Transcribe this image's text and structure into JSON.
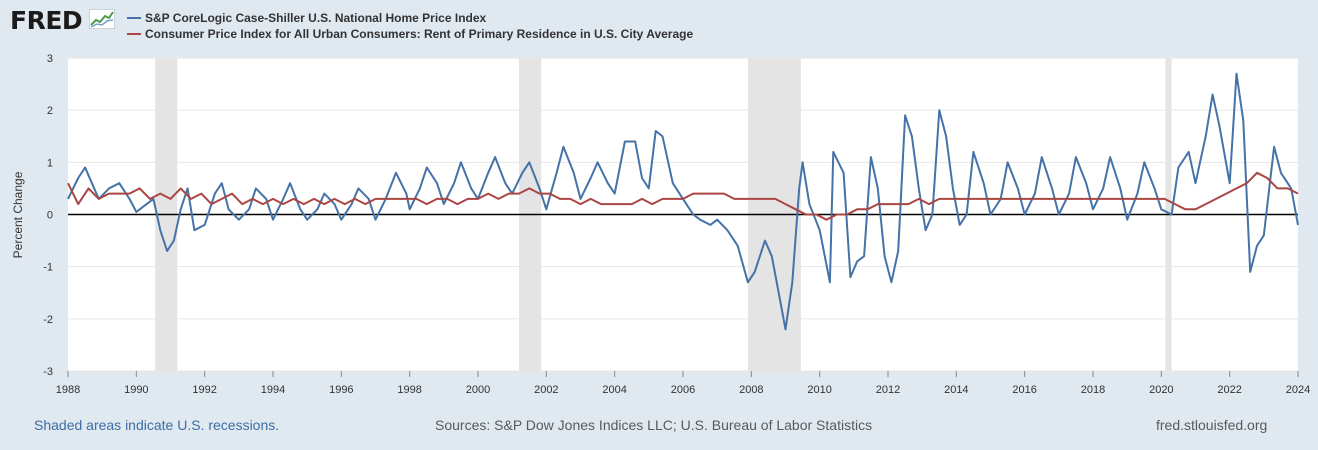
{
  "header": {
    "logo_text": "FRED"
  },
  "legend": [
    {
      "label": "S&P CoreLogic Case-Shiller U.S. National Home Price Index",
      "color": "#4572a7"
    },
    {
      "label": "Consumer Price Index for All Urban Consumers: Rent of Primary Residence in U.S. City Average",
      "color": "#aa4643"
    }
  ],
  "footer": {
    "recession_note": "Shaded areas indicate U.S. recessions.",
    "sources": "Sources: S&P Dow Jones Indices LLC; U.S. Bureau of Labor Statistics",
    "site": "fred.stlouisfed.org"
  },
  "chart_data": {
    "type": "line",
    "ylabel": "Percent Change",
    "xlim": [
      1988,
      2024
    ],
    "ylim": [
      -3,
      3
    ],
    "yticks": [
      -3,
      -2,
      -1,
      0,
      1,
      2,
      3
    ],
    "xticks": [
      1988,
      1990,
      1992,
      1994,
      1996,
      1998,
      2000,
      2002,
      2004,
      2006,
      2008,
      2010,
      2012,
      2014,
      2016,
      2018,
      2020,
      2022,
      2024
    ],
    "grid": true,
    "legend_position": "top-left",
    "recessions": [
      [
        1990.55,
        1991.2
      ],
      [
        2001.2,
        2001.85
      ],
      [
        2007.9,
        2009.45
      ],
      [
        2020.12,
        2020.3
      ]
    ],
    "series": [
      {
        "name": "S&P CoreLogic Case-Shiller U.S. National Home Price Index",
        "color": "#4572a7",
        "points": [
          [
            1988.0,
            0.3
          ],
          [
            1988.3,
            0.7
          ],
          [
            1988.5,
            0.9
          ],
          [
            1988.7,
            0.6
          ],
          [
            1988.9,
            0.3
          ],
          [
            1989.2,
            0.5
          ],
          [
            1989.5,
            0.6
          ],
          [
            1989.8,
            0.3
          ],
          [
            1990.0,
            0.05
          ],
          [
            1990.3,
            0.2
          ],
          [
            1990.5,
            0.3
          ],
          [
            1990.7,
            -0.3
          ],
          [
            1990.9,
            -0.7
          ],
          [
            1991.1,
            -0.5
          ],
          [
            1991.3,
            0.1
          ],
          [
            1991.5,
            0.5
          ],
          [
            1991.7,
            -0.3
          ],
          [
            1992.0,
            -0.2
          ],
          [
            1992.3,
            0.4
          ],
          [
            1992.5,
            0.6
          ],
          [
            1992.7,
            0.1
          ],
          [
            1993.0,
            -0.1
          ],
          [
            1993.3,
            0.1
          ],
          [
            1993.5,
            0.5
          ],
          [
            1993.8,
            0.3
          ],
          [
            1994.0,
            -0.1
          ],
          [
            1994.3,
            0.3
          ],
          [
            1994.5,
            0.6
          ],
          [
            1994.8,
            0.1
          ],
          [
            1995.0,
            -0.1
          ],
          [
            1995.3,
            0.1
          ],
          [
            1995.5,
            0.4
          ],
          [
            1995.8,
            0.2
          ],
          [
            1996.0,
            -0.1
          ],
          [
            1996.3,
            0.2
          ],
          [
            1996.5,
            0.5
          ],
          [
            1996.8,
            0.3
          ],
          [
            1997.0,
            -0.1
          ],
          [
            1997.3,
            0.3
          ],
          [
            1997.6,
            0.8
          ],
          [
            1997.9,
            0.4
          ],
          [
            1998.0,
            0.1
          ],
          [
            1998.3,
            0.5
          ],
          [
            1998.5,
            0.9
          ],
          [
            1998.8,
            0.6
          ],
          [
            1999.0,
            0.2
          ],
          [
            1999.3,
            0.6
          ],
          [
            1999.5,
            1.0
          ],
          [
            1999.8,
            0.5
          ],
          [
            2000.0,
            0.3
          ],
          [
            2000.3,
            0.8
          ],
          [
            2000.5,
            1.1
          ],
          [
            2000.8,
            0.6
          ],
          [
            2001.0,
            0.4
          ],
          [
            2001.3,
            0.8
          ],
          [
            2001.5,
            1.0
          ],
          [
            2001.8,
            0.5
          ],
          [
            2002.0,
            0.1
          ],
          [
            2002.3,
            0.8
          ],
          [
            2002.5,
            1.3
          ],
          [
            2002.8,
            0.8
          ],
          [
            2003.0,
            0.3
          ],
          [
            2003.3,
            0.7
          ],
          [
            2003.5,
            1.0
          ],
          [
            2003.8,
            0.6
          ],
          [
            2004.0,
            0.4
          ],
          [
            2004.3,
            1.4
          ],
          [
            2004.6,
            1.4
          ],
          [
            2004.8,
            0.7
          ],
          [
            2005.0,
            0.5
          ],
          [
            2005.2,
            1.6
          ],
          [
            2005.4,
            1.5
          ],
          [
            2005.7,
            0.6
          ],
          [
            2006.0,
            0.3
          ],
          [
            2006.3,
            0.0
          ],
          [
            2006.5,
            -0.1
          ],
          [
            2006.8,
            -0.2
          ],
          [
            2007.0,
            -0.1
          ],
          [
            2007.3,
            -0.3
          ],
          [
            2007.6,
            -0.6
          ],
          [
            2007.9,
            -1.3
          ],
          [
            2008.1,
            -1.1
          ],
          [
            2008.4,
            -0.5
          ],
          [
            2008.6,
            -0.8
          ],
          [
            2008.8,
            -1.5
          ],
          [
            2009.0,
            -2.2
          ],
          [
            2009.2,
            -1.3
          ],
          [
            2009.4,
            0.5
          ],
          [
            2009.5,
            1.0
          ],
          [
            2009.7,
            0.2
          ],
          [
            2010.0,
            -0.3
          ],
          [
            2010.3,
            -1.3
          ],
          [
            2010.4,
            1.2
          ],
          [
            2010.7,
            0.8
          ],
          [
            2010.9,
            -1.2
          ],
          [
            2011.1,
            -0.9
          ],
          [
            2011.3,
            -0.8
          ],
          [
            2011.5,
            1.1
          ],
          [
            2011.7,
            0.5
          ],
          [
            2011.9,
            -0.8
          ],
          [
            2012.1,
            -1.3
          ],
          [
            2012.3,
            -0.7
          ],
          [
            2012.5,
            1.9
          ],
          [
            2012.7,
            1.5
          ],
          [
            2012.9,
            0.5
          ],
          [
            2013.1,
            -0.3
          ],
          [
            2013.3,
            0.0
          ],
          [
            2013.5,
            2.0
          ],
          [
            2013.7,
            1.5
          ],
          [
            2013.9,
            0.5
          ],
          [
            2014.1,
            -0.2
          ],
          [
            2014.3,
            0.0
          ],
          [
            2014.5,
            1.2
          ],
          [
            2014.8,
            0.6
          ],
          [
            2015.0,
            0.0
          ],
          [
            2015.3,
            0.3
          ],
          [
            2015.5,
            1.0
          ],
          [
            2015.8,
            0.5
          ],
          [
            2016.0,
            0.0
          ],
          [
            2016.3,
            0.4
          ],
          [
            2016.5,
            1.1
          ],
          [
            2016.8,
            0.5
          ],
          [
            2017.0,
            0.0
          ],
          [
            2017.3,
            0.4
          ],
          [
            2017.5,
            1.1
          ],
          [
            2017.8,
            0.6
          ],
          [
            2018.0,
            0.1
          ],
          [
            2018.3,
            0.5
          ],
          [
            2018.5,
            1.1
          ],
          [
            2018.8,
            0.5
          ],
          [
            2019.0,
            -0.1
          ],
          [
            2019.3,
            0.4
          ],
          [
            2019.5,
            1.0
          ],
          [
            2019.8,
            0.5
          ],
          [
            2020.0,
            0.1
          ],
          [
            2020.3,
            0.0
          ],
          [
            2020.5,
            0.9
          ],
          [
            2020.8,
            1.2
          ],
          [
            2021.0,
            0.6
          ],
          [
            2021.3,
            1.5
          ],
          [
            2021.5,
            2.3
          ],
          [
            2021.7,
            1.7
          ],
          [
            2022.0,
            0.6
          ],
          [
            2022.2,
            2.7
          ],
          [
            2022.4,
            1.8
          ],
          [
            2022.6,
            -1.1
          ],
          [
            2022.8,
            -0.6
          ],
          [
            2023.0,
            -0.4
          ],
          [
            2023.3,
            1.3
          ],
          [
            2023.5,
            0.8
          ],
          [
            2023.8,
            0.5
          ],
          [
            2024.0,
            -0.2
          ]
        ]
      },
      {
        "name": "Consumer Price Index for All Urban Consumers: Rent of Primary Residence in U.S. City Average",
        "color": "#aa4643",
        "points": [
          [
            1988.0,
            0.6
          ],
          [
            1988.3,
            0.2
          ],
          [
            1988.6,
            0.5
          ],
          [
            1988.9,
            0.3
          ],
          [
            1989.2,
            0.4
          ],
          [
            1989.5,
            0.4
          ],
          [
            1989.8,
            0.4
          ],
          [
            1990.1,
            0.5
          ],
          [
            1990.4,
            0.3
          ],
          [
            1990.7,
            0.4
          ],
          [
            1991.0,
            0.3
          ],
          [
            1991.3,
            0.5
          ],
          [
            1991.6,
            0.3
          ],
          [
            1991.9,
            0.4
          ],
          [
            1992.2,
            0.2
          ],
          [
            1992.5,
            0.3
          ],
          [
            1992.8,
            0.4
          ],
          [
            1993.1,
            0.2
          ],
          [
            1993.4,
            0.3
          ],
          [
            1993.7,
            0.2
          ],
          [
            1994.0,
            0.3
          ],
          [
            1994.3,
            0.2
          ],
          [
            1994.6,
            0.3
          ],
          [
            1994.9,
            0.2
          ],
          [
            1995.2,
            0.3
          ],
          [
            1995.5,
            0.2
          ],
          [
            1995.8,
            0.3
          ],
          [
            1996.1,
            0.2
          ],
          [
            1996.4,
            0.3
          ],
          [
            1996.7,
            0.2
          ],
          [
            1997.0,
            0.3
          ],
          [
            1997.3,
            0.3
          ],
          [
            1997.6,
            0.3
          ],
          [
            1997.9,
            0.3
          ],
          [
            1998.2,
            0.3
          ],
          [
            1998.5,
            0.2
          ],
          [
            1998.8,
            0.3
          ],
          [
            1999.1,
            0.3
          ],
          [
            1999.4,
            0.2
          ],
          [
            1999.7,
            0.3
          ],
          [
            2000.0,
            0.3
          ],
          [
            2000.3,
            0.4
          ],
          [
            2000.6,
            0.3
          ],
          [
            2000.9,
            0.4
          ],
          [
            2001.2,
            0.4
          ],
          [
            2001.5,
            0.5
          ],
          [
            2001.8,
            0.4
          ],
          [
            2002.1,
            0.4
          ],
          [
            2002.4,
            0.3
          ],
          [
            2002.7,
            0.3
          ],
          [
            2003.0,
            0.2
          ],
          [
            2003.3,
            0.3
          ],
          [
            2003.6,
            0.2
          ],
          [
            2003.9,
            0.2
          ],
          [
            2004.2,
            0.2
          ],
          [
            2004.5,
            0.2
          ],
          [
            2004.8,
            0.3
          ],
          [
            2005.1,
            0.2
          ],
          [
            2005.4,
            0.3
          ],
          [
            2005.7,
            0.3
          ],
          [
            2006.0,
            0.3
          ],
          [
            2006.3,
            0.4
          ],
          [
            2006.6,
            0.4
          ],
          [
            2006.9,
            0.4
          ],
          [
            2007.2,
            0.4
          ],
          [
            2007.5,
            0.3
          ],
          [
            2007.8,
            0.3
          ],
          [
            2008.1,
            0.3
          ],
          [
            2008.4,
            0.3
          ],
          [
            2008.7,
            0.3
          ],
          [
            2009.0,
            0.2
          ],
          [
            2009.3,
            0.1
          ],
          [
            2009.6,
            0.0
          ],
          [
            2009.9,
            0.0
          ],
          [
            2010.2,
            -0.1
          ],
          [
            2010.5,
            0.0
          ],
          [
            2010.8,
            0.0
          ],
          [
            2011.1,
            0.1
          ],
          [
            2011.4,
            0.1
          ],
          [
            2011.7,
            0.2
          ],
          [
            2012.0,
            0.2
          ],
          [
            2012.3,
            0.2
          ],
          [
            2012.6,
            0.2
          ],
          [
            2012.9,
            0.3
          ],
          [
            2013.2,
            0.2
          ],
          [
            2013.5,
            0.3
          ],
          [
            2013.8,
            0.3
          ],
          [
            2014.1,
            0.3
          ],
          [
            2014.4,
            0.3
          ],
          [
            2014.7,
            0.3
          ],
          [
            2015.0,
            0.3
          ],
          [
            2015.3,
            0.3
          ],
          [
            2015.6,
            0.3
          ],
          [
            2015.9,
            0.3
          ],
          [
            2016.2,
            0.3
          ],
          [
            2016.5,
            0.3
          ],
          [
            2016.8,
            0.3
          ],
          [
            2017.1,
            0.3
          ],
          [
            2017.4,
            0.3
          ],
          [
            2017.7,
            0.3
          ],
          [
            2018.0,
            0.3
          ],
          [
            2018.3,
            0.3
          ],
          [
            2018.6,
            0.3
          ],
          [
            2018.9,
            0.3
          ],
          [
            2019.2,
            0.3
          ],
          [
            2019.5,
            0.3
          ],
          [
            2019.8,
            0.3
          ],
          [
            2020.1,
            0.3
          ],
          [
            2020.4,
            0.2
          ],
          [
            2020.7,
            0.1
          ],
          [
            2021.0,
            0.1
          ],
          [
            2021.3,
            0.2
          ],
          [
            2021.6,
            0.3
          ],
          [
            2021.9,
            0.4
          ],
          [
            2022.2,
            0.5
          ],
          [
            2022.5,
            0.6
          ],
          [
            2022.8,
            0.8
          ],
          [
            2023.1,
            0.7
          ],
          [
            2023.4,
            0.5
          ],
          [
            2023.7,
            0.5
          ],
          [
            2024.0,
            0.4
          ]
        ]
      }
    ]
  }
}
